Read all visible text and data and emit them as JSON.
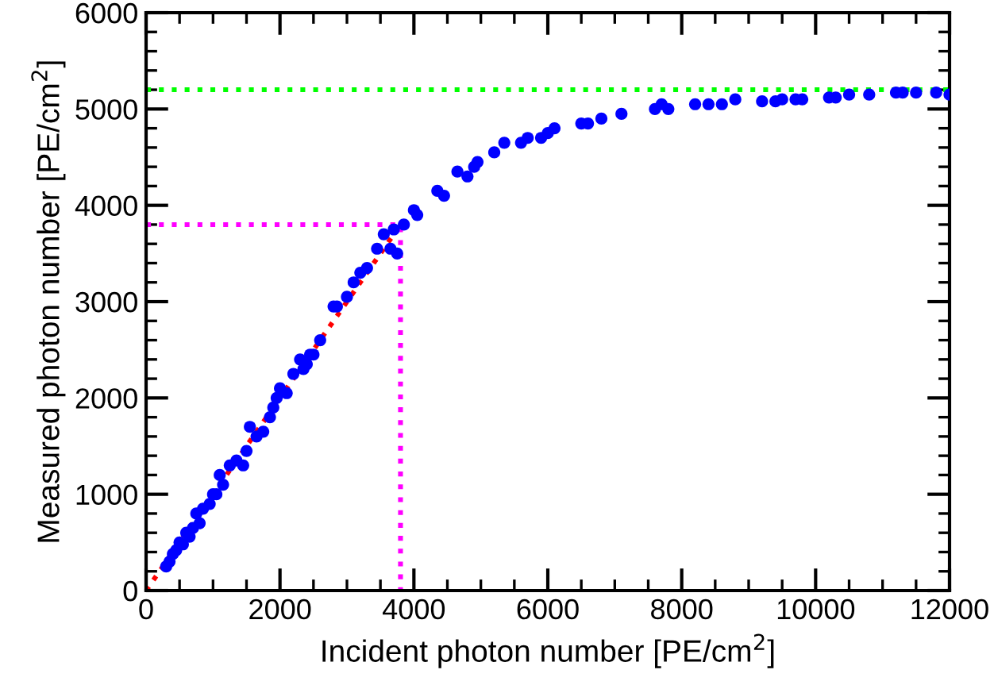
{
  "chart_data": {
    "type": "scatter",
    "xlabel": "Incident photon number [PE/cm$^{2}$]",
    "ylabel": "Measured photon number [PE/cm$^{2}$]",
    "xlim": [
      0,
      12000
    ],
    "ylim": [
      0,
      6000
    ],
    "xticks": [
      0,
      2000,
      4000,
      6000,
      8000,
      10000,
      12000
    ],
    "yticks": [
      0,
      1000,
      2000,
      3000,
      4000,
      5000,
      6000
    ],
    "grid": false,
    "legend": false,
    "marker": "circle",
    "series": [
      {
        "type": "line",
        "color": "#ff0000",
        "line_style": "dotted",
        "marker": "none",
        "x": [
          0,
          3800
        ],
        "values": [
          0,
          3800
        ]
      },
      {
        "type": "line",
        "color": "#ff00ff",
        "line_style": "dotted",
        "marker": "none",
        "x": [
          0,
          3800,
          3800
        ],
        "values": [
          3800,
          3800,
          0
        ]
      },
      {
        "color": "#0000ff",
        "x": [
          300,
          350,
          400,
          450,
          500,
          550,
          600,
          650,
          700,
          750,
          800,
          850,
          950,
          1000,
          1050,
          1100,
          1150,
          1250,
          1350,
          1450,
          1500,
          1550,
          1650,
          1750,
          1850,
          1900,
          1950,
          2000,
          2100,
          2200,
          2300,
          2350,
          2400,
          2450,
          2500,
          2600,
          2800,
          2850,
          3000,
          3100,
          3200,
          3300,
          3450,
          3550,
          3650,
          3700,
          3750,
          3850,
          4000,
          4050,
          4350,
          4450,
          4650,
          4800,
          4900,
          4950,
          5200,
          5350,
          5600,
          5700,
          5900,
          6000,
          6100,
          6500,
          6600,
          6800,
          7100,
          7600,
          7700,
          7800,
          8200,
          8400,
          8600,
          8800,
          9200,
          9400,
          9500,
          9700,
          9800,
          10200,
          10300,
          10500,
          10800,
          11200,
          11300,
          11500,
          11800,
          12000
        ],
        "values": [
          250,
          300,
          380,
          420,
          500,
          480,
          600,
          560,
          650,
          800,
          700,
          850,
          900,
          1000,
          1000,
          1200,
          1100,
          1300,
          1350,
          1300,
          1450,
          1700,
          1600,
          1650,
          1800,
          1900,
          2000,
          2100,
          2050,
          2250,
          2400,
          2300,
          2350,
          2450,
          2450,
          2600,
          2950,
          2950,
          3050,
          3200,
          3300,
          3350,
          3550,
          3700,
          3550,
          3750,
          3500,
          3800,
          3950,
          3900,
          4150,
          4100,
          4350,
          4300,
          4400,
          4450,
          4550,
          4650,
          4650,
          4700,
          4700,
          4750,
          4800,
          4850,
          4850,
          4900,
          4950,
          5000,
          5050,
          5000,
          5050,
          5050,
          5050,
          5100,
          5080,
          5080,
          5100,
          5100,
          5100,
          5120,
          5120,
          5150,
          5150,
          5170,
          5170,
          5170,
          5170,
          5150
        ]
      }
    ],
    "ref_lines": [
      {
        "axis": "y",
        "value": 5200,
        "color": "#00ff00",
        "line_style": "dotted"
      }
    ]
  }
}
